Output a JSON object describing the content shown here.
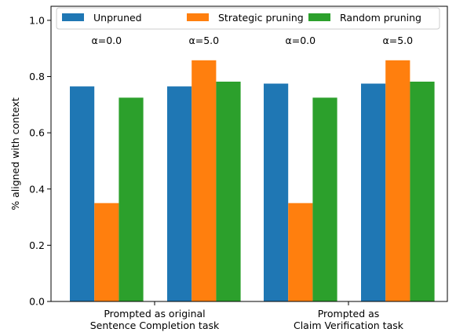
{
  "chart_data": {
    "type": "bar",
    "ylabel": "% aligned with context",
    "ylim": [
      0,
      1.05
    ],
    "yticks": [
      0.0,
      0.2,
      0.4,
      0.6,
      0.8,
      1.0
    ],
    "ytick_labels": [
      "0.0",
      "0.2",
      "0.4",
      "0.6",
      "0.8",
      "1.0"
    ],
    "groups": [
      {
        "label_lines": [
          "Prompted as original",
          "Sentence Completion task"
        ]
      },
      {
        "label_lines": [
          "Prompted as",
          "Claim Verification task"
        ]
      }
    ],
    "subgroup_labels": [
      "α=0.0",
      "α=5.0",
      "α=0.0",
      "α=5.0"
    ],
    "series": [
      {
        "name": "Unpruned",
        "color": "#1f77b4",
        "values": [
          0.765,
          0.765,
          0.775,
          0.775
        ]
      },
      {
        "name": "Strategic pruning",
        "color": "#ff7f0e",
        "values": [
          0.35,
          0.858,
          0.35,
          0.858
        ]
      },
      {
        "name": "Random pruning",
        "color": "#2ca02c",
        "values": [
          0.725,
          0.782,
          0.725,
          0.782
        ]
      }
    ],
    "legend": "top-center",
    "grid": false
  }
}
